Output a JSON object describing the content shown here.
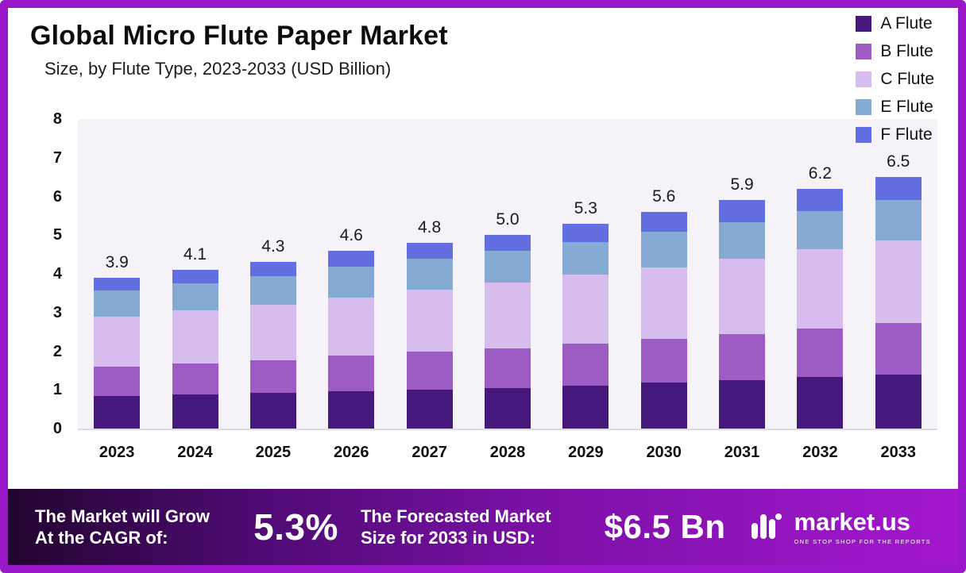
{
  "header": {
    "title": "Global Micro Flute Paper Market",
    "subtitle": "Size, by Flute Type, 2023-2033 (USD Billion)"
  },
  "chart_data": {
    "type": "bar",
    "stacked": true,
    "title": "Global Micro Flute Paper Market Size, by Flute Type, 2023-2033 (USD Billion)",
    "xlabel": "",
    "ylabel": "",
    "ylim": [
      0,
      8
    ],
    "yticks": [
      0,
      1,
      2,
      3,
      4,
      5,
      6,
      7,
      8
    ],
    "grid": false,
    "legend_position": "top-right",
    "categories": [
      "2023",
      "2024",
      "2025",
      "2026",
      "2027",
      "2028",
      "2029",
      "2030",
      "2031",
      "2032",
      "2033"
    ],
    "series": [
      {
        "name": "A Flute",
        "color": "#44197b",
        "values": [
          0.85,
          0.88,
          0.92,
          0.97,
          1.01,
          1.05,
          1.1,
          1.18,
          1.25,
          1.33,
          1.4
        ]
      },
      {
        "name": "B Flute",
        "color": "#9c5cc4",
        "values": [
          0.75,
          0.8,
          0.85,
          0.91,
          0.97,
          1.03,
          1.09,
          1.13,
          1.19,
          1.26,
          1.32
        ]
      },
      {
        "name": "C Flute",
        "color": "#d7bdee",
        "values": [
          1.3,
          1.37,
          1.43,
          1.51,
          1.6,
          1.7,
          1.78,
          1.86,
          1.96,
          2.04,
          2.15
        ]
      },
      {
        "name": "E Flute",
        "color": "#85abd5",
        "values": [
          0.67,
          0.7,
          0.74,
          0.8,
          0.81,
          0.81,
          0.86,
          0.91,
          0.94,
          0.99,
          1.04
        ]
      },
      {
        "name": "F Flute",
        "color": "#636fe0",
        "values": [
          0.33,
          0.35,
          0.36,
          0.41,
          0.41,
          0.41,
          0.47,
          0.52,
          0.56,
          0.58,
          0.59
        ]
      }
    ],
    "totals": [
      3.9,
      4.1,
      4.3,
      4.6,
      4.8,
      5.0,
      5.3,
      5.6,
      5.9,
      6.2,
      6.5
    ],
    "total_labels": [
      "3.9",
      "4.1",
      "4.3",
      "4.6",
      "4.8",
      "5.0",
      "5.3",
      "5.6",
      "5.9",
      "6.2",
      "6.5"
    ]
  },
  "footer": {
    "cagr_label": "The Market will Grow At the CAGR of:",
    "cagr_value": "5.3%",
    "forecast_label": "The Forecasted Market Size for 2033 in USD:",
    "forecast_value": "$6.5 Bn",
    "brand": "market.us",
    "brand_tagline": "ONE STOP SHOP FOR THE REPORTS",
    "logo_icon": "marketus-logo-icon"
  },
  "colors": {
    "frame": "#9a16c9",
    "footer_gradient": [
      "#23042f",
      "#a318cf"
    ],
    "plot_background": "#f5f3f7"
  }
}
